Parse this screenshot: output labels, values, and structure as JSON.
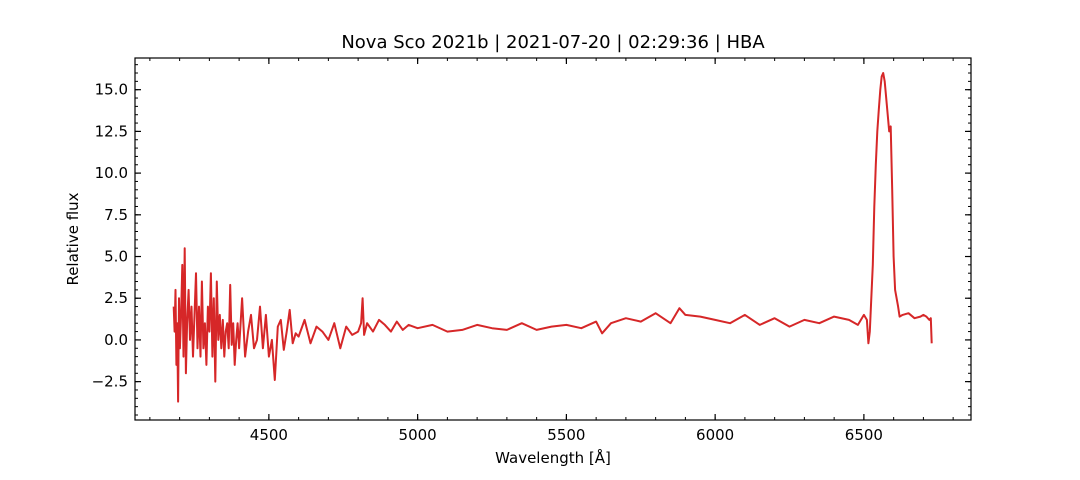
{
  "chart_data": {
    "type": "line",
    "title": "Nova Sco 2021b | 2021-07-20 | 02:29:36 | HBA",
    "xlabel": "Wavelength [Å]",
    "ylabel": "Relative flux",
    "xlim": [
      4050,
      6860
    ],
    "ylim": [
      -4.8,
      16.9
    ],
    "grid": false,
    "x_major_ticks": [
      4500,
      5000,
      5500,
      6000,
      6500
    ],
    "x_tick_labels": [
      "4500",
      "5000",
      "5500",
      "6000",
      "6500"
    ],
    "x_minor_step": 100,
    "y_major_ticks": [
      -2.5,
      0.0,
      2.5,
      5.0,
      7.5,
      10.0,
      12.5,
      15.0
    ],
    "y_tick_labels": [
      "−2.5",
      "0.0",
      "2.5",
      "5.0",
      "7.5",
      "10.0",
      "12.5",
      "15.0"
    ],
    "y_minor_step": 0.5,
    "series": [
      {
        "color": "#d62728",
        "x": [
          4180,
          4183,
          4186,
          4189,
          4192,
          4195,
          4198,
          4201,
          4205,
          4209,
          4213,
          4217,
          4221,
          4225,
          4230,
          4235,
          4240,
          4245,
          4250,
          4255,
          4260,
          4265,
          4270,
          4275,
          4280,
          4285,
          4290,
          4295,
          4300,
          4305,
          4310,
          4315,
          4320,
          4325,
          4330,
          4335,
          4340,
          4345,
          4350,
          4355,
          4360,
          4365,
          4370,
          4375,
          4380,
          4385,
          4390,
          4395,
          4400,
          4410,
          4420,
          4430,
          4440,
          4450,
          4460,
          4470,
          4480,
          4490,
          4500,
          4510,
          4520,
          4530,
          4540,
          4550,
          4560,
          4570,
          4580,
          4590,
          4600,
          4620,
          4640,
          4660,
          4680,
          4700,
          4720,
          4740,
          4760,
          4780,
          4800,
          4810,
          4815,
          4820,
          4830,
          4850,
          4870,
          4890,
          4910,
          4930,
          4950,
          4970,
          5000,
          5050,
          5100,
          5150,
          5200,
          5250,
          5300,
          5350,
          5400,
          5450,
          5500,
          5550,
          5600,
          5620,
          5650,
          5700,
          5750,
          5800,
          5850,
          5880,
          5900,
          5950,
          6000,
          6050,
          6100,
          6150,
          6200,
          6250,
          6300,
          6350,
          6400,
          6450,
          6480,
          6500,
          6510,
          6515,
          6520,
          6525,
          6530,
          6535,
          6540,
          6545,
          6550,
          6555,
          6560,
          6565,
          6570,
          6575,
          6580,
          6585,
          6590,
          6595,
          6600,
          6605,
          6610,
          6615,
          6620,
          6630,
          6650,
          6670,
          6690,
          6700,
          6710,
          6720,
          6725,
          6728
        ],
        "y": [
          2.0,
          0.5,
          3.0,
          -1.5,
          1.0,
          -3.7,
          2.5,
          -0.5,
          1.5,
          4.5,
          -1.0,
          5.5,
          -2.0,
          1.0,
          3.0,
          0.0,
          2.0,
          -1.0,
          1.5,
          4.0,
          -0.5,
          2.0,
          -1.0,
          3.5,
          -0.5,
          1.0,
          -1.5,
          2.0,
          0.5,
          4.0,
          -1.0,
          2.5,
          -2.5,
          3.5,
          0.0,
          1.5,
          -0.5,
          1.2,
          -1.0,
          0.5,
          1.0,
          -0.5,
          3.3,
          -0.3,
          1.0,
          -1.5,
          0.0,
          1.0,
          -0.5,
          2.5,
          -1.0,
          0.5,
          1.5,
          -0.5,
          0.0,
          2.0,
          -0.5,
          1.5,
          -1.0,
          0.0,
          -2.4,
          0.8,
          1.2,
          -0.6,
          0.5,
          1.8,
          -0.2,
          0.4,
          0.2,
          1.2,
          -0.2,
          0.8,
          0.5,
          0.0,
          1.0,
          -0.5,
          0.8,
          0.3,
          0.5,
          1.0,
          2.5,
          0.3,
          1.0,
          0.5,
          1.2,
          0.9,
          0.5,
          1.1,
          0.6,
          0.9,
          0.7,
          0.9,
          0.5,
          0.6,
          0.9,
          0.7,
          0.6,
          1.0,
          0.6,
          0.8,
          0.9,
          0.7,
          1.1,
          0.4,
          1.0,
          1.3,
          1.1,
          1.6,
          1.0,
          1.9,
          1.5,
          1.4,
          1.2,
          1.0,
          1.5,
          0.9,
          1.3,
          0.8,
          1.2,
          1.0,
          1.4,
          1.2,
          0.9,
          1.5,
          1.2,
          -0.2,
          0.5,
          2.5,
          4.5,
          8.0,
          10.5,
          12.5,
          13.8,
          15.0,
          15.8,
          16.0,
          15.5,
          14.5,
          13.5,
          12.5,
          12.8,
          9.0,
          5.0,
          3.0,
          2.5,
          2.0,
          1.4,
          1.5,
          1.6,
          1.3,
          1.4,
          1.5,
          1.4,
          1.2,
          1.3,
          -0.2
        ]
      }
    ]
  }
}
